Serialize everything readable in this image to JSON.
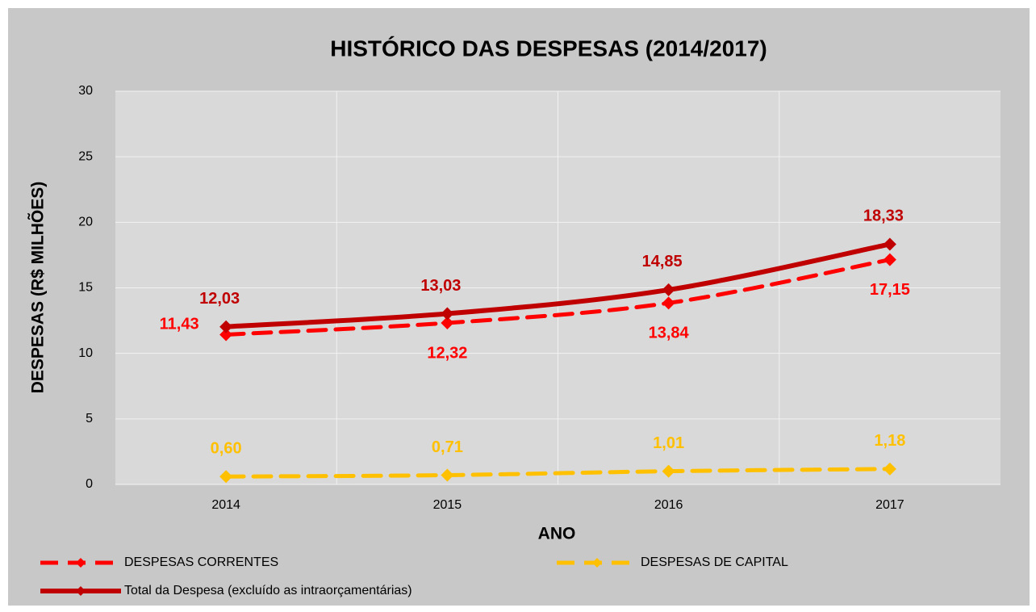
{
  "chart_data": {
    "type": "line",
    "title": "HISTÓRICO DAS DESPESAS (2014/2017)",
    "x_label": "ANO",
    "y_label": "DESPESAS (R$ MILHÕES)",
    "categories": [
      "2014",
      "2015",
      "2016",
      "2017"
    ],
    "series": [
      {
        "name": "DESPESAS CORRENTES",
        "color": "#ff0000",
        "dashed": true,
        "values": [
          11.43,
          12.32,
          13.84,
          17.15
        ],
        "value_labels": [
          "11,43",
          "12,32",
          "13,84",
          "17,15"
        ]
      },
      {
        "name": "DESPESAS DE CAPITAL",
        "color": "#ffc000",
        "dashed": true,
        "values": [
          0.6,
          0.71,
          1.01,
          1.18
        ],
        "value_labels": [
          "0,60",
          "0,71",
          "1,01",
          "1,18"
        ]
      },
      {
        "name": "Total da Despesa (excluído as intraorçamentárias)",
        "color": "#c00000",
        "dashed": false,
        "values": [
          12.03,
          13.03,
          14.85,
          18.33
        ],
        "value_labels": [
          "12,03",
          "13,03",
          "14,85",
          "18,33"
        ]
      }
    ],
    "ylim": [
      0,
      30
    ],
    "yticks": [
      0,
      5,
      10,
      15,
      20,
      25,
      30
    ],
    "grid": true,
    "legend": "bottom"
  }
}
